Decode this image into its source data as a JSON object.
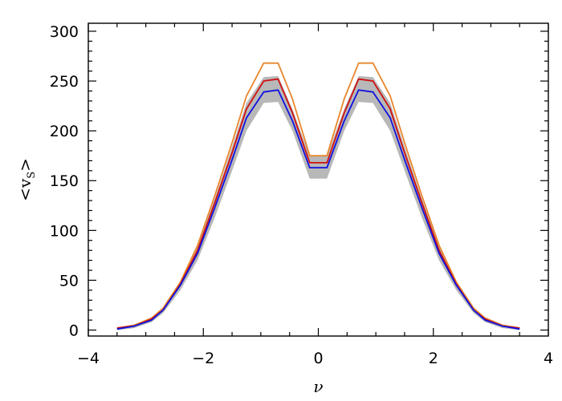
{
  "chart_data": {
    "type": "line",
    "title": "",
    "xlabel": "ν",
    "ylabel_parts": {
      "left": "<",
      "main": "v",
      "sub": "S",
      "right": ">"
    },
    "xlim": [
      -4,
      4
    ],
    "ylim": [
      -6,
      308
    ],
    "x_ticks": [
      -4,
      -2,
      0,
      2,
      4
    ],
    "y_ticks": [
      0,
      50,
      100,
      150,
      200,
      250,
      300
    ],
    "x_minor_step": 0.5,
    "y_minor_step": 10,
    "grid": false,
    "legend": "none",
    "x": [
      -3.5,
      -3.2,
      -2.9,
      -2.7,
      -2.4,
      -2.1,
      -1.8,
      -1.5,
      -1.25,
      -0.95,
      -0.7,
      -0.45,
      -0.15,
      0.15,
      0.45,
      0.7,
      0.95,
      1.25,
      1.5,
      1.8,
      2.1,
      2.4,
      2.7,
      2.9,
      3.2,
      3.5
    ],
    "series": [
      {
        "color": "#e8872e",
        "values": [
          2,
          5,
          12,
          22,
          48,
          85,
          135,
          188,
          235,
          268,
          268,
          232,
          175,
          175,
          232,
          268,
          268,
          235,
          188,
          135,
          85,
          48,
          22,
          12,
          5,
          2
        ]
      },
      {
        "color": "#d01010",
        "values": [
          2,
          4,
          11,
          20,
          46,
          80,
          128,
          178,
          222,
          250,
          252,
          218,
          168,
          168,
          218,
          252,
          250,
          222,
          178,
          128,
          80,
          46,
          20,
          11,
          4,
          2
        ]
      },
      {
        "color": "#1010e0",
        "values": [
          1,
          4,
          10,
          20,
          45,
          77,
          123,
          171,
          213,
          239,
          241,
          210,
          163,
          163,
          210,
          241,
          239,
          213,
          171,
          123,
          77,
          45,
          20,
          10,
          4,
          1
        ]
      }
    ],
    "band": {
      "color": "#b8b8b8",
      "upper": [
        2,
        5,
        12,
        22,
        48,
        84,
        132,
        184,
        228,
        254,
        255,
        222,
        175,
        175,
        222,
        255,
        254,
        228,
        184,
        132,
        84,
        48,
        22,
        12,
        5,
        2
      ],
      "lower": [
        0,
        2,
        8,
        17,
        40,
        70,
        113,
        160,
        200,
        228,
        229,
        200,
        152,
        152,
        200,
        229,
        228,
        200,
        160,
        113,
        70,
        40,
        17,
        8,
        2,
        0
      ]
    }
  }
}
